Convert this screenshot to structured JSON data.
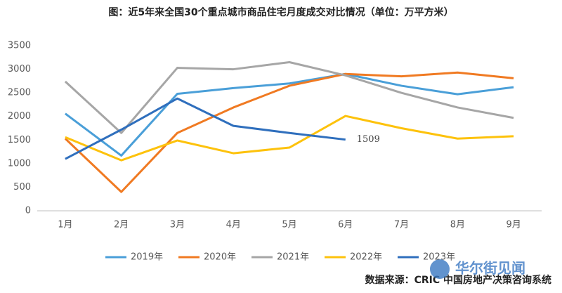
{
  "chart_data": {
    "type": "line",
    "title": "图：近5年来全国30个重点城市商品住宅月度成交对比情况（单位：万平方米）",
    "categories": [
      "1月",
      "2月",
      "3月",
      "4月",
      "5月",
      "6月",
      "7月",
      "8月",
      "9月"
    ],
    "series": [
      {
        "name": "2019年",
        "color": "#4a9fd8",
        "values": [
          2060,
          1170,
          2480,
          2600,
          2700,
          2900,
          2650,
          2470,
          2620
        ]
      },
      {
        "name": "2020年",
        "color": "#f07a22",
        "values": [
          1530,
          400,
          1650,
          2190,
          2650,
          2900,
          2850,
          2930,
          2810
        ]
      },
      {
        "name": "2021年",
        "color": "#a6a6a6",
        "values": [
          2740,
          1650,
          3030,
          3000,
          3150,
          2870,
          2500,
          2190,
          1970
        ]
      },
      {
        "name": "2022年",
        "color": "#fdc20c",
        "values": [
          1560,
          1070,
          1490,
          1220,
          1340,
          2010,
          1750,
          1530,
          1580
        ]
      },
      {
        "name": "2023年",
        "color": "#2f6fbd",
        "values": [
          1100,
          1720,
          2380,
          1800,
          1650,
          1509,
          null,
          null,
          null
        ]
      }
    ],
    "ylim": [
      0,
      3500
    ],
    "yticks": [
      0,
      500,
      1000,
      1500,
      2000,
      2500,
      3000,
      3500
    ],
    "grid": false,
    "legend": "bottom",
    "source": "数据来源：CRIC 中国房地产决策咨询系统",
    "watermark": "华尔街见闻"
  }
}
